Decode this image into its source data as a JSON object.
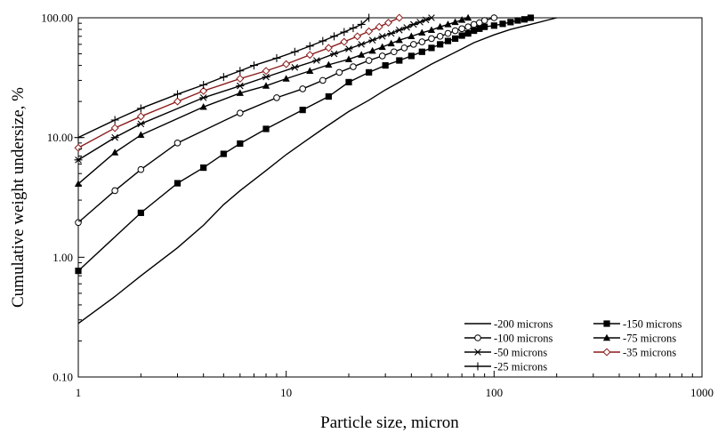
{
  "chart_data": {
    "type": "line",
    "title": "",
    "xlabel": "Particle size, micron",
    "ylabel": "Cumulative weight undersize, %",
    "x_scale": "log",
    "y_scale": "log",
    "xlim": [
      1,
      1000
    ],
    "ylim": [
      0.1,
      100
    ],
    "x_ticks": [
      1,
      10,
      100,
      1000
    ],
    "x_tick_labels": [
      "1",
      "10",
      "100",
      "1000"
    ],
    "y_ticks": [
      0.1,
      1,
      10,
      100
    ],
    "y_tick_labels": [
      "0.10",
      "1.00",
      "10.00",
      "100.00"
    ],
    "grid": false,
    "legend_position": "bottom-right",
    "line_color": "#000000",
    "highlight_color": "#8b1a1a",
    "series": [
      {
        "name": "-200 microns",
        "marker": "none",
        "x": [
          1,
          1.5,
          2,
          3,
          4,
          5,
          6,
          8,
          10,
          12,
          15,
          20,
          25,
          30,
          40,
          50,
          60,
          70,
          80,
          100,
          120,
          150,
          200
        ],
        "y": [
          0.28,
          0.47,
          0.7,
          1.2,
          1.85,
          2.75,
          3.6,
          5.3,
          7.2,
          9.0,
          11.8,
          16.5,
          20.5,
          25.0,
          33.0,
          41.0,
          48.0,
          55.0,
          62.0,
          72.0,
          80.0,
          88.0,
          100.0
        ]
      },
      {
        "name": "-150 microns",
        "marker": "filled-square",
        "x": [
          1,
          2,
          3,
          4,
          5,
          6,
          8,
          12,
          16,
          20,
          25,
          30,
          35,
          40,
          45,
          50,
          55,
          60,
          65,
          70,
          75,
          80,
          85,
          90,
          100,
          110,
          120,
          130,
          140,
          150
        ],
        "y": [
          0.77,
          2.35,
          4.15,
          5.6,
          7.3,
          8.9,
          11.8,
          17.0,
          22.0,
          29.0,
          35.0,
          40.0,
          44.0,
          48.0,
          52.0,
          56.0,
          60.0,
          64.0,
          67.0,
          71.0,
          74.0,
          78.0,
          81.0,
          84.0,
          86.0,
          89.0,
          92.0,
          95.0,
          97.0,
          100.0
        ]
      },
      {
        "name": "-100 microns",
        "marker": "hollow-circle",
        "x": [
          1,
          1.5,
          2,
          3,
          6,
          9,
          12,
          15,
          18,
          21,
          25,
          29,
          33,
          37,
          41,
          45,
          50,
          55,
          60,
          65,
          70,
          75,
          80,
          85,
          90,
          100
        ],
        "y": [
          1.95,
          3.6,
          5.4,
          9.0,
          16.0,
          21.5,
          25.5,
          30.0,
          35.0,
          39.0,
          44.0,
          48.0,
          52.0,
          56.0,
          60.0,
          63.0,
          67.0,
          70.0,
          74.0,
          78.0,
          81.0,
          84.0,
          88.0,
          91.0,
          95.0,
          100.0
        ]
      },
      {
        "name": "-75 microns",
        "marker": "filled-triangle",
        "x": [
          1,
          1.5,
          2,
          4,
          6,
          8,
          10,
          13,
          16,
          20,
          23,
          26,
          29,
          32,
          35,
          40,
          45,
          50,
          55,
          60,
          65,
          70,
          75
        ],
        "y": [
          4.1,
          7.5,
          10.5,
          18.0,
          23.5,
          27.0,
          31.0,
          36.0,
          40.5,
          45.0,
          49.0,
          53.0,
          57.0,
          61.0,
          65.0,
          70.0,
          75.0,
          79.0,
          84.0,
          88.0,
          92.0,
          96.0,
          100.0
        ]
      },
      {
        "name": "-50 microns",
        "marker": "asterisk",
        "x": [
          1,
          1.5,
          2,
          4,
          6,
          8,
          11,
          14,
          17,
          20,
          23,
          26,
          29,
          32,
          35,
          38,
          41,
          44,
          47,
          50
        ],
        "y": [
          6.5,
          10.0,
          13.0,
          21.5,
          27.0,
          32.0,
          38.5,
          44.0,
          50.0,
          55.0,
          60.0,
          65.0,
          70.0,
          74.0,
          79.0,
          83.0,
          88.0,
          92.0,
          96.0,
          100.0
        ]
      },
      {
        "name": "-35 microns",
        "marker": "hollow-diamond",
        "x": [
          1,
          1.5,
          2,
          3,
          4,
          6,
          8,
          10,
          13,
          16,
          19,
          22,
          25,
          28,
          31,
          35
        ],
        "y": [
          8.2,
          12.0,
          15.0,
          20.0,
          24.5,
          31.0,
          36.0,
          41.0,
          49.0,
          56.0,
          63.0,
          70.0,
          77.0,
          84.0,
          91.0,
          100.0
        ]
      },
      {
        "name": "-25 microns",
        "marker": "plus",
        "x": [
          1,
          1.5,
          2,
          3,
          4,
          5,
          6,
          7,
          9,
          11,
          13,
          15,
          17,
          19,
          21,
          23,
          25
        ],
        "y": [
          10.0,
          14.0,
          17.5,
          23.0,
          27.5,
          32.0,
          36.0,
          40.0,
          46.0,
          52.0,
          58.0,
          64.0,
          70.0,
          76.0,
          82.0,
          88.0,
          100.0
        ]
      }
    ]
  }
}
